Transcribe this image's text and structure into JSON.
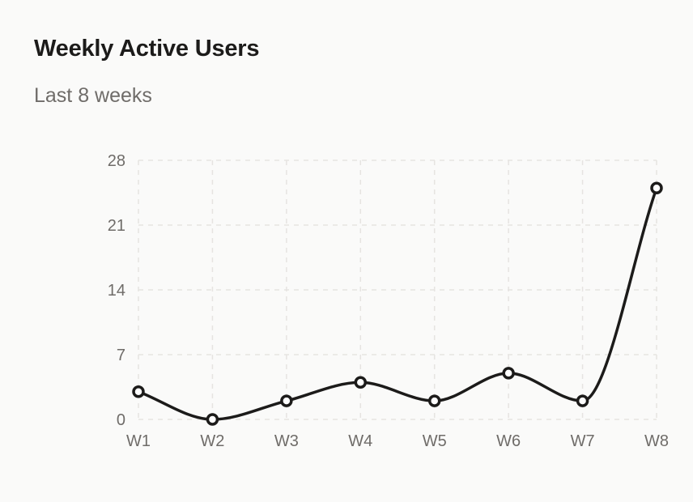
{
  "header": {
    "title": "Weekly Active Users",
    "subtitle": "Last 8 weeks"
  },
  "colors": {
    "background": "#fafaf9",
    "line": "#1c1b1a",
    "marker_fill": "#ffffff",
    "grid": "#e6e4e1",
    "tick_text": "#6f6c69"
  },
  "chart_data": {
    "type": "line",
    "title": "Weekly Active Users",
    "subtitle": "Last 8 weeks",
    "xlabel": "",
    "ylabel": "",
    "categories": [
      "W1",
      "W2",
      "W3",
      "W4",
      "W5",
      "W6",
      "W7",
      "W8"
    ],
    "series": [
      {
        "values": [
          3,
          0,
          2,
          4,
          2,
          5,
          2,
          25
        ]
      }
    ],
    "ylim": [
      0,
      28
    ],
    "yticks": [
      0,
      7,
      14,
      21,
      28
    ],
    "grid": true,
    "grid_style": "dashed",
    "curve": "smooth",
    "markers": "hollow-circle",
    "legend": "none"
  }
}
